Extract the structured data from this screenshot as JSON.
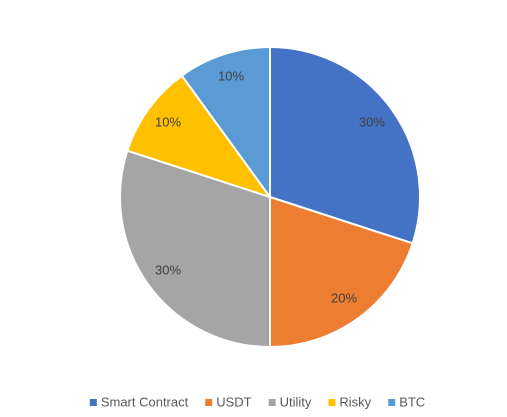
{
  "chart_data": {
    "type": "pie",
    "categories": [
      "Smart Contract",
      "USDT",
      "Utility",
      "Risky",
      "BTC"
    ],
    "values": [
      30,
      20,
      30,
      10,
      10
    ],
    "value_labels": [
      "30%",
      "20%",
      "30%",
      "10%",
      "10%"
    ],
    "colors": [
      "#4472c4",
      "#ed7d31",
      "#a5a5a5",
      "#ffc000",
      "#5b9bd5"
    ],
    "legend": "bottom"
  }
}
